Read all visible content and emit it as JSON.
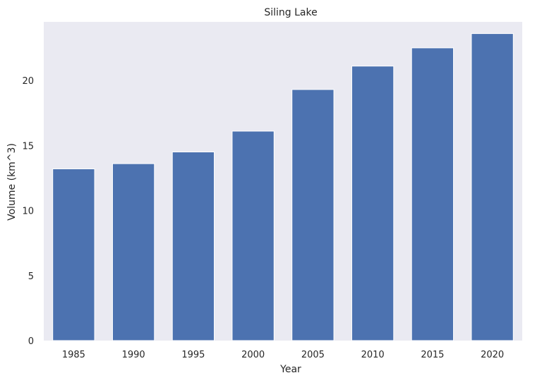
{
  "chart_data": {
    "type": "bar",
    "title": "Siling Lake",
    "xlabel": "Year",
    "ylabel": "Volume (km^3)",
    "categories": [
      "1985",
      "1990",
      "1995",
      "2000",
      "2005",
      "2010",
      "2015",
      "2020"
    ],
    "values": [
      13.2,
      13.6,
      14.5,
      16.1,
      19.3,
      21.1,
      22.5,
      23.6
    ],
    "ylim": [
      0,
      24.5
    ],
    "yticks": [
      0,
      5,
      10,
      15,
      20
    ],
    "grid": false,
    "colors": {
      "bar": "#4c72b0",
      "plot_background": "#eaeaf2",
      "bar_edge": "#ffffff"
    }
  }
}
